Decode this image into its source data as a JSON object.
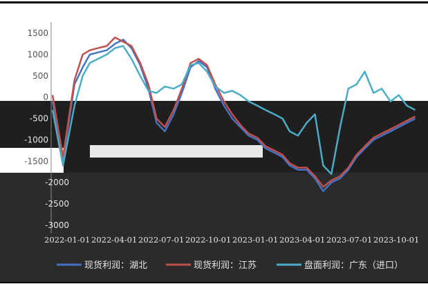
{
  "chart_data": {
    "type": "line",
    "title": "",
    "xlabel": "",
    "ylabel": "",
    "ylim": [
      -3000,
      1500
    ],
    "y_ticks": [
      "1500",
      "1000",
      "500",
      "0",
      "-500",
      "-1000",
      "-1500",
      "-2000",
      "-2500",
      "-3000"
    ],
    "y_tick_values": [
      1500,
      1000,
      500,
      0,
      -500,
      -1000,
      -1500,
      -2000,
      -2500,
      -3000
    ],
    "x_ticks": [
      "2022-01-01",
      "2022-04-01",
      "2022-07-01",
      "2022-10-01",
      "2023-01-01",
      "2023-04-01",
      "2023-07-01",
      "2023-10-01"
    ],
    "grid": false,
    "legend": "bottom",
    "series": [
      {
        "name": "现货利润：湖北",
        "color": "#4472c4",
        "x": [
          "2022-01-01",
          "2022-01-20",
          "2022-02-10",
          "2022-02-25",
          "2022-03-10",
          "2022-03-25",
          "2022-04-10",
          "2022-04-25",
          "2022-05-10",
          "2022-05-25",
          "2022-06-10",
          "2022-06-25",
          "2022-07-10",
          "2022-07-25",
          "2022-08-10",
          "2022-08-25",
          "2022-09-10",
          "2022-09-25",
          "2022-10-10",
          "2022-10-25",
          "2022-11-10",
          "2022-11-25",
          "2022-12-10",
          "2022-12-25",
          "2023-01-10",
          "2023-01-25",
          "2023-02-10",
          "2023-02-25",
          "2023-03-10",
          "2023-03-25",
          "2023-04-10",
          "2023-04-25",
          "2023-05-10",
          "2023-05-25",
          "2023-06-10",
          "2023-06-25",
          "2023-07-10",
          "2023-07-25",
          "2023-08-10",
          "2023-08-25",
          "2023-09-10",
          "2023-09-25",
          "2023-10-10",
          "2023-10-25"
        ],
        "values": [
          -100,
          -1500,
          300,
          700,
          1000,
          1050,
          1100,
          1250,
          1350,
          1150,
          750,
          200,
          -600,
          -800,
          -400,
          100,
          700,
          850,
          700,
          200,
          -200,
          -500,
          -700,
          -900,
          -1000,
          -1200,
          -1300,
          -1400,
          -1600,
          -1700,
          -1700,
          -1900,
          -2200,
          -2000,
          -1900,
          -1700,
          -1400,
          -1200,
          -1000,
          -900,
          -800,
          -700,
          -600,
          -500
        ]
      },
      {
        "name": "现货利润：江苏",
        "color": "#c0504d",
        "x": [
          "2022-01-01",
          "2022-01-20",
          "2022-02-10",
          "2022-02-25",
          "2022-03-10",
          "2022-03-25",
          "2022-04-10",
          "2022-04-25",
          "2022-05-10",
          "2022-05-25",
          "2022-06-10",
          "2022-06-25",
          "2022-07-10",
          "2022-07-25",
          "2022-08-10",
          "2022-08-25",
          "2022-09-10",
          "2022-09-25",
          "2022-10-10",
          "2022-10-25",
          "2022-11-10",
          "2022-11-25",
          "2022-12-10",
          "2022-12-25",
          "2023-01-10",
          "2023-01-25",
          "2023-02-10",
          "2023-02-25",
          "2023-03-10",
          "2023-03-25",
          "2023-04-10",
          "2023-04-25",
          "2023-05-10",
          "2023-05-25",
          "2023-06-10",
          "2023-06-25",
          "2023-07-10",
          "2023-07-25",
          "2023-08-10",
          "2023-08-25",
          "2023-09-10",
          "2023-09-25",
          "2023-10-10",
          "2023-10-25"
        ],
        "values": [
          50,
          -1400,
          400,
          1000,
          1100,
          1150,
          1200,
          1400,
          1300,
          1200,
          800,
          300,
          -500,
          -700,
          -300,
          200,
          800,
          900,
          750,
          300,
          -100,
          -400,
          -650,
          -850,
          -950,
          -1150,
          -1250,
          -1350,
          -1550,
          -1650,
          -1650,
          -1850,
          -2100,
          -1950,
          -1850,
          -1650,
          -1350,
          -1150,
          -950,
          -850,
          -750,
          -650,
          -550,
          -450
        ]
      },
      {
        "name": "盘面利润：广东（进口）",
        "color": "#4bacc6",
        "x": [
          "2022-01-01",
          "2022-01-20",
          "2022-02-10",
          "2022-02-25",
          "2022-03-10",
          "2022-03-25",
          "2022-04-10",
          "2022-04-25",
          "2022-05-10",
          "2022-05-25",
          "2022-06-10",
          "2022-06-25",
          "2022-07-10",
          "2022-07-25",
          "2022-08-10",
          "2022-08-25",
          "2022-09-10",
          "2022-09-25",
          "2022-10-10",
          "2022-10-25",
          "2022-11-10",
          "2022-11-25",
          "2022-12-10",
          "2022-12-25",
          "2023-01-10",
          "2023-01-25",
          "2023-02-10",
          "2023-02-25",
          "2023-03-10",
          "2023-03-25",
          "2023-04-10",
          "2023-04-25",
          "2023-05-10",
          "2023-05-25",
          "2023-06-10",
          "2023-06-25",
          "2023-07-10",
          "2023-07-25",
          "2023-08-10",
          "2023-08-25",
          "2023-09-10",
          "2023-09-25",
          "2023-10-10",
          "2023-10-25"
        ],
        "values": [
          -300,
          -1600,
          -200,
          500,
          800,
          900,
          1000,
          1150,
          1200,
          900,
          500,
          150,
          100,
          250,
          200,
          300,
          750,
          800,
          600,
          250,
          100,
          150,
          50,
          -100,
          -200,
          -300,
          -400,
          -500,
          -800,
          -900,
          -600,
          -400,
          -1600,
          -1800,
          -700,
          200,
          300,
          600,
          100,
          200,
          -100,
          50,
          -200,
          -300
        ]
      }
    ]
  }
}
